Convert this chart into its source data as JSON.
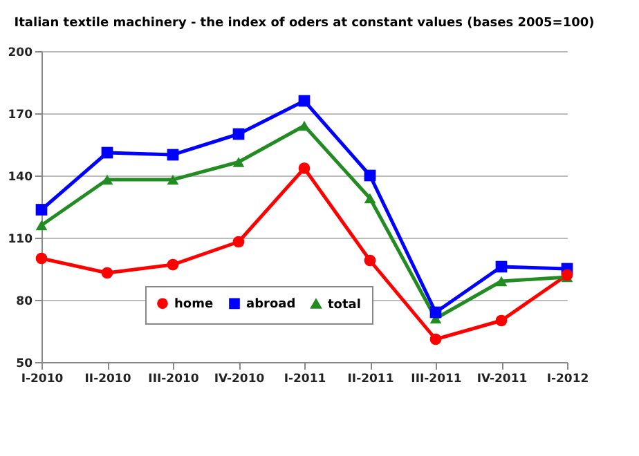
{
  "chart_data": {
    "type": "line",
    "title": "Italian textile machinery - the index of oders at constant values (bases 2005=100)",
    "categories": [
      "I-2010",
      "II-2010",
      "III-2010",
      "IV-2010",
      "I-2011",
      "II-2011",
      "III-2011",
      "IV-2011",
      "I-2012"
    ],
    "series": [
      {
        "name": "home",
        "color": "#ff0000",
        "marker": "circle",
        "values": [
          100,
          93,
          97,
          108,
          143.5,
          99,
          61,
          70,
          92
        ]
      },
      {
        "name": "abroad",
        "color": "#0000ff",
        "marker": "square",
        "values": [
          123.5,
          151,
          150,
          160,
          176,
          140,
          74,
          96,
          95
        ]
      },
      {
        "name": "total",
        "color": "#228b22",
        "marker": "triangle",
        "values": [
          116,
          138,
          138,
          146.5,
          164,
          129,
          71,
          89,
          91
        ]
      }
    ],
    "ylim": [
      50,
      200
    ],
    "yticks": [
      50,
      80,
      110,
      140,
      170,
      200
    ],
    "grid": "y",
    "legend": "bottom"
  }
}
